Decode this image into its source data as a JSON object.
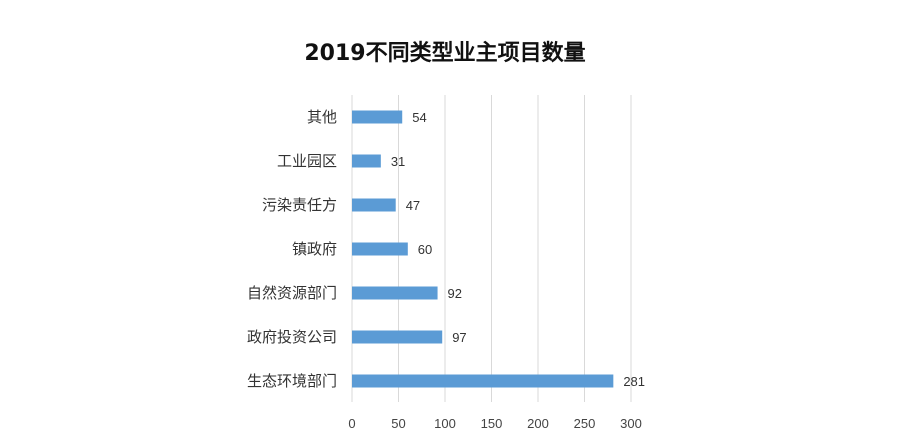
{
  "chart_data": {
    "type": "bar",
    "orientation": "horizontal",
    "title": "2019不同类型业主项目数量",
    "categories": [
      "其他",
      "工业园区",
      "污染责任方",
      "镇政府",
      "自然资源部门",
      "政府投资公司",
      "生态环境部门"
    ],
    "values": [
      54,
      31,
      47,
      60,
      92,
      97,
      281
    ],
    "xlim": [
      0,
      300
    ],
    "xticks": [
      0,
      50,
      100,
      150,
      200,
      250,
      300
    ],
    "grid": true,
    "legend": "none",
    "bar_color": "#5b9bd5"
  }
}
